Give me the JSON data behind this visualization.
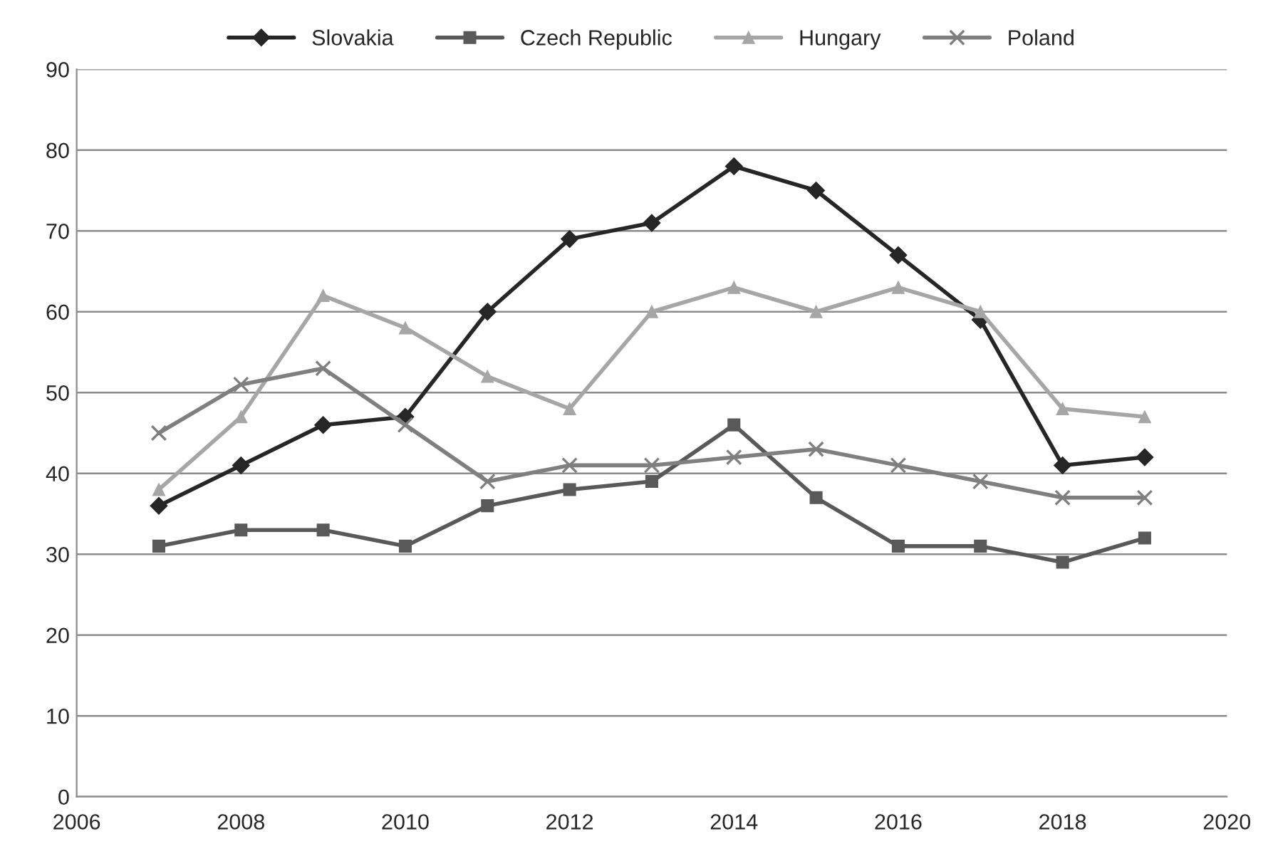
{
  "chart_data": {
    "type": "line",
    "x": [
      2007,
      2008,
      2009,
      2010,
      2011,
      2012,
      2013,
      2014,
      2015,
      2016,
      2017,
      2018,
      2019
    ],
    "series": [
      {
        "name": "Slovakia",
        "color": "#262626",
        "marker": "diamond",
        "values": [
          36,
          41,
          46,
          47,
          60,
          69,
          71,
          78,
          75,
          67,
          59,
          41,
          42
        ]
      },
      {
        "name": "Czech Republic",
        "color": "#595959",
        "marker": "square",
        "values": [
          31,
          33,
          33,
          31,
          36,
          38,
          39,
          46,
          37,
          31,
          31,
          29,
          32
        ]
      },
      {
        "name": "Hungary",
        "color": "#a6a6a6",
        "marker": "triangle",
        "values": [
          38,
          47,
          62,
          58,
          52,
          48,
          60,
          63,
          60,
          63,
          60,
          48,
          47
        ]
      },
      {
        "name": "Poland",
        "color": "#7f7f7f",
        "marker": "cross",
        "values": [
          45,
          51,
          53,
          46,
          39,
          41,
          41,
          42,
          43,
          41,
          39,
          37,
          37
        ]
      }
    ],
    "xlim": [
      2006,
      2020
    ],
    "xticks": [
      2006,
      2008,
      2010,
      2012,
      2014,
      2016,
      2018,
      2020
    ],
    "ylim": [
      0,
      90
    ],
    "yticks": [
      0,
      10,
      20,
      30,
      40,
      50,
      60,
      70,
      80,
      90
    ],
    "grid": "y",
    "legend": "top"
  }
}
